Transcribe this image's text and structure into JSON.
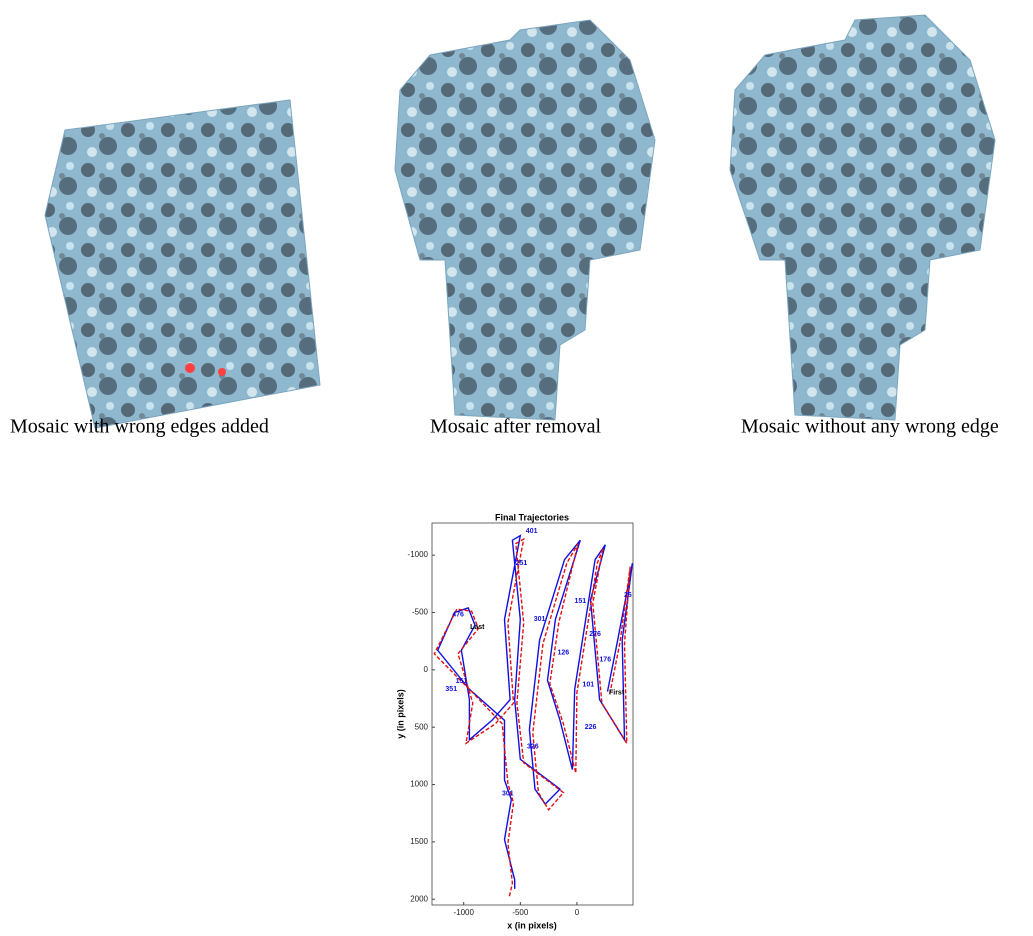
{
  "figure": {
    "captions": [
      "Mosaic with wrong edges added",
      "Mosaic after removal",
      "Mosaic without any wrong edge"
    ]
  },
  "chart_data": {
    "type": "line",
    "title": "Final Trajectories",
    "x_label": "x (in pixels)",
    "y_label": "y (in pixels)",
    "xlim": [
      -1280,
      495
    ],
    "ylim": [
      -1280,
      2050
    ],
    "y_reversed": true,
    "xticks": [
      -1000,
      -500,
      0
    ],
    "yticks": [
      -1000,
      -500,
      0,
      500,
      1000,
      1500,
      2000
    ],
    "series": [
      {
        "color": "#1010e0",
        "dash": "solid",
        "x": [
          270,
          360,
          490,
          400,
          420,
          200,
          120,
          250,
          160,
          -20,
          -40,
          -150,
          -260,
          -190,
          30,
          -110,
          -330,
          -420,
          -370,
          -280,
          -150,
          -500,
          -550,
          -500,
          -570,
          -500,
          -640,
          -590,
          -750,
          -950,
          -950,
          -1020,
          -900,
          -960,
          -1080,
          -1230,
          -950,
          -640,
          -640,
          -580,
          -640,
          -550,
          -550
        ],
        "y": [
          190,
          -260,
          -930,
          -260,
          610,
          260,
          -610,
          -1090,
          -960,
          170,
          870,
          440,
          90,
          -440,
          -1130,
          -960,
          -260,
          520,
          1040,
          1170,
          1040,
          780,
          260,
          -440,
          -1130,
          -1170,
          -440,
          260,
          440,
          610,
          260,
          -170,
          -390,
          -540,
          -500,
          -170,
          170,
          440,
          960,
          1130,
          1480,
          1830,
          1910
        ]
      },
      {
        "color": "#e01010",
        "dash": "dashed",
        "x": [
          290,
          380,
          470,
          420,
          440,
          220,
          140,
          230,
          180,
          0,
          -10,
          -120,
          -240,
          -160,
          10,
          -90,
          -300,
          -390,
          -340,
          -250,
          -120,
          -470,
          -530,
          -470,
          -540,
          -470,
          -610,
          -560,
          -720,
          -980,
          -920,
          -1050,
          -870,
          -930,
          -1060,
          -1260,
          -920,
          -660,
          -610,
          -560,
          -610,
          -570,
          -600
        ],
        "y": [
          210,
          -240,
          -900,
          -230,
          640,
          290,
          -580,
          -1060,
          -930,
          200,
          900,
          470,
          120,
          -410,
          -1100,
          -930,
          -230,
          550,
          1070,
          1220,
          1070,
          810,
          290,
          -410,
          -1100,
          -1140,
          -410,
          290,
          470,
          640,
          290,
          -140,
          -360,
          -510,
          -530,
          -140,
          200,
          470,
          990,
          1160,
          1510,
          1860,
          1990
        ]
      }
    ],
    "annotations": [
      {
        "text": "401",
        "x": -400,
        "y": -1210,
        "color": "#1010e0"
      },
      {
        "text": "251",
        "x": -490,
        "y": -930,
        "color": "#1010e0"
      },
      {
        "text": "151",
        "x": 30,
        "y": -600,
        "color": "#1010e0"
      },
      {
        "text": "26",
        "x": 450,
        "y": -650,
        "color": "#1010e0"
      },
      {
        "text": "301",
        "x": -330,
        "y": -440,
        "color": "#1010e0"
      },
      {
        "text": "476",
        "x": -1050,
        "y": -480,
        "color": "#1010e0"
      },
      {
        "text": "Last",
        "x": -880,
        "y": -370,
        "color": "#000000"
      },
      {
        "text": "276",
        "x": 160,
        "y": -310,
        "color": "#1010e0"
      },
      {
        "text": "126",
        "x": -120,
        "y": -150,
        "color": "#1010e0"
      },
      {
        "text": "176",
        "x": 250,
        "y": -90,
        "color": "#1010e0"
      },
      {
        "text": "101",
        "x": 100,
        "y": 130,
        "color": "#1010e0"
      },
      {
        "text": "First",
        "x": 350,
        "y": 200,
        "color": "#000000"
      },
      {
        "text": "151",
        "x": -1020,
        "y": 100,
        "color": "#1010e0"
      },
      {
        "text": "351",
        "x": -1110,
        "y": 170,
        "color": "#1010e0"
      },
      {
        "text": "326",
        "x": -390,
        "y": 670,
        "color": "#1010e0"
      },
      {
        "text": "226",
        "x": 120,
        "y": 500,
        "color": "#1010e0"
      },
      {
        "text": "301",
        "x": -610,
        "y": 1080,
        "color": "#1010e0"
      }
    ]
  }
}
